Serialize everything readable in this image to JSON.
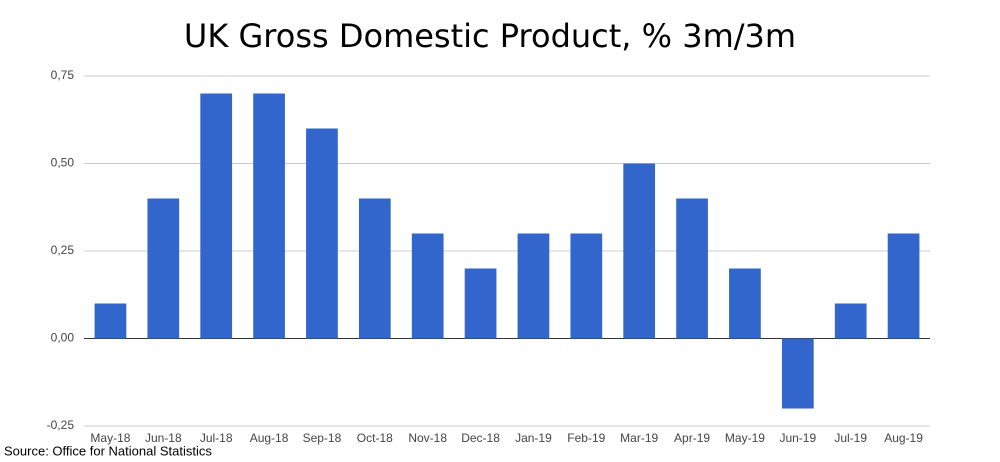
{
  "chart_data": {
    "type": "bar",
    "title": "UK Gross Domestic Product, % 3m/3m",
    "source": "Source: Office for National Statistics",
    "categories": [
      "May-18",
      "Jun-18",
      "Jul-18",
      "Aug-18",
      "Sep-18",
      "Oct-18",
      "Nov-18",
      "Dec-18",
      "Jan-19",
      "Feb-19",
      "Mar-19",
      "Apr-19",
      "May-19",
      "Jun-19",
      "Jul-19",
      "Aug-19"
    ],
    "values": [
      0.1,
      0.4,
      0.7,
      0.7,
      0.6,
      0.4,
      0.3,
      0.2,
      0.3,
      0.3,
      0.5,
      0.4,
      0.2,
      -0.2,
      0.1,
      0.3
    ],
    "color": "#3366cc",
    "ylim": [
      -0.25,
      0.75
    ],
    "yticks": [
      {
        "value": -0.25,
        "label": "-0,25"
      },
      {
        "value": 0,
        "label": "0,00"
      },
      {
        "value": 0.25,
        "label": "0,25"
      },
      {
        "value": 0.5,
        "label": "0,50"
      },
      {
        "value": 0.75,
        "label": "0,75"
      }
    ],
    "grid": true
  }
}
